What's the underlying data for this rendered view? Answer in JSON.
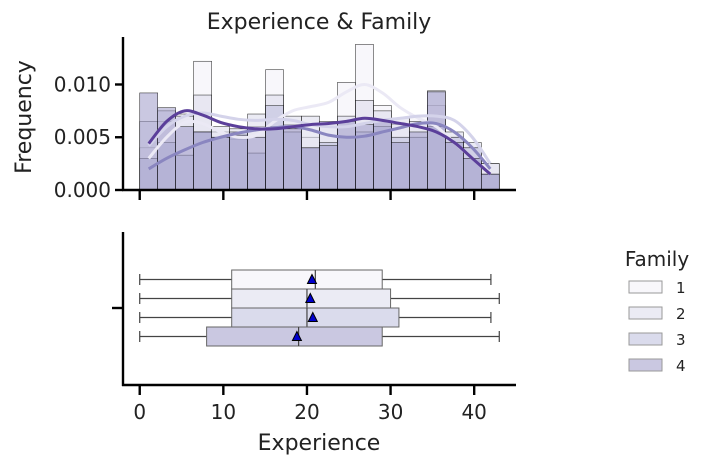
{
  "chart_data": {
    "type": "histogram+boxplot",
    "title": "Experience & Family",
    "xlabel": "Experience",
    "ylabel_top": "Frequency",
    "xlim": [
      -2,
      45
    ],
    "ylim_top": [
      0,
      0.0145
    ],
    "xticks": [
      0,
      10,
      20,
      30,
      40
    ],
    "yticks_top": [
      0.0,
      0.005,
      0.01
    ],
    "ytick_labels_top": [
      "0.000",
      "0.005",
      "0.010"
    ],
    "bin_edges": [
      0,
      2.15,
      4.3,
      6.45,
      8.6,
      10.75,
      12.9,
      15.05,
      17.2,
      19.35,
      21.5,
      23.65,
      25.8,
      27.95,
      30.1,
      32.25,
      34.4,
      36.55,
      38.7,
      40.85,
      43
    ],
    "legend": {
      "title": "Family",
      "placement": "right",
      "labels": [
        "1",
        "2",
        "3",
        "4"
      ]
    },
    "series": [
      {
        "name": "1",
        "color": "#f2f0f7",
        "hist": [
          0.004,
          0.0065,
          0.0072,
          0.0122,
          0.0055,
          0.0048,
          0.006,
          0.0114,
          0.0062,
          0.005,
          0.006,
          0.0102,
          0.0138,
          0.008,
          0.0062,
          0.007,
          0.008,
          0.005,
          0.004,
          0.0025
        ],
        "kde": [
          0.003,
          0.005,
          0.0064,
          0.0063,
          0.0055,
          0.005,
          0.0052,
          0.0065,
          0.0075,
          0.0079,
          0.0083,
          0.0093,
          0.01,
          0.0092,
          0.0078,
          0.0068,
          0.006,
          0.0045,
          0.003,
          0.0015
        ],
        "box": {
          "whisker_low": 0,
          "q1": 11,
          "median": 21,
          "q3": 29,
          "whisker_high": 42,
          "mean": 20.6
        }
      },
      {
        "name": "2",
        "color": "#dadaeb",
        "hist": [
          0.0065,
          0.0075,
          0.007,
          0.009,
          0.006,
          0.0058,
          0.0072,
          0.009,
          0.007,
          0.007,
          0.0065,
          0.007,
          0.0085,
          0.0075,
          0.0068,
          0.0065,
          0.0094,
          0.0055,
          0.0045,
          0.0025
        ],
        "kde": [
          0.0042,
          0.006,
          0.007,
          0.0073,
          0.007,
          0.0067,
          0.0066,
          0.0067,
          0.0066,
          0.0062,
          0.006,
          0.006,
          0.0063,
          0.0066,
          0.0068,
          0.007,
          0.007,
          0.0066,
          0.005,
          0.0025
        ],
        "box": {
          "whisker_low": 0,
          "q1": 11,
          "median": 20,
          "q3": 30,
          "whisker_high": 43,
          "mean": 20.4
        }
      },
      {
        "name": "3",
        "color": "#bcbddc",
        "hist": [
          0.003,
          0.0045,
          0.0033,
          0.0055,
          0.005,
          0.0055,
          0.0035,
          0.008,
          0.0055,
          0.004,
          0.0045,
          0.005,
          0.0055,
          0.006,
          0.005,
          0.005,
          0.006,
          0.005,
          0.004,
          0.0015
        ],
        "kde": [
          0.002,
          0.003,
          0.0038,
          0.0045,
          0.005,
          0.0054,
          0.0057,
          0.0059,
          0.006,
          0.0057,
          0.0052,
          0.005,
          0.0051,
          0.0055,
          0.0059,
          0.0063,
          0.0063,
          0.0055,
          0.004,
          0.002
        ],
        "box": {
          "whisker_low": 0,
          "q1": 11,
          "median": 20,
          "q3": 31,
          "whisker_high": 42,
          "mean": 20.7
        }
      },
      {
        "name": "4",
        "color": "#9e9ac8",
        "hist": [
          0.0092,
          0.0078,
          0.006,
          0.0055,
          0.005,
          0.0052,
          0.005,
          0.006,
          0.0058,
          0.004,
          0.0042,
          0.0065,
          0.0062,
          0.0065,
          0.0045,
          0.0055,
          0.0093,
          0.0045,
          0.003,
          0.0015
        ],
        "kde": [
          0.0044,
          0.0065,
          0.0075,
          0.0071,
          0.0064,
          0.006,
          0.0058,
          0.0058,
          0.006,
          0.0062,
          0.0063,
          0.0065,
          0.0068,
          0.0066,
          0.0063,
          0.006,
          0.0055,
          0.0045,
          0.003,
          0.0015
        ],
        "box": {
          "whisker_low": 0,
          "q1": 8,
          "median": 19,
          "q3": 29,
          "whisker_high": 43,
          "mean": 18.8
        }
      }
    ]
  }
}
